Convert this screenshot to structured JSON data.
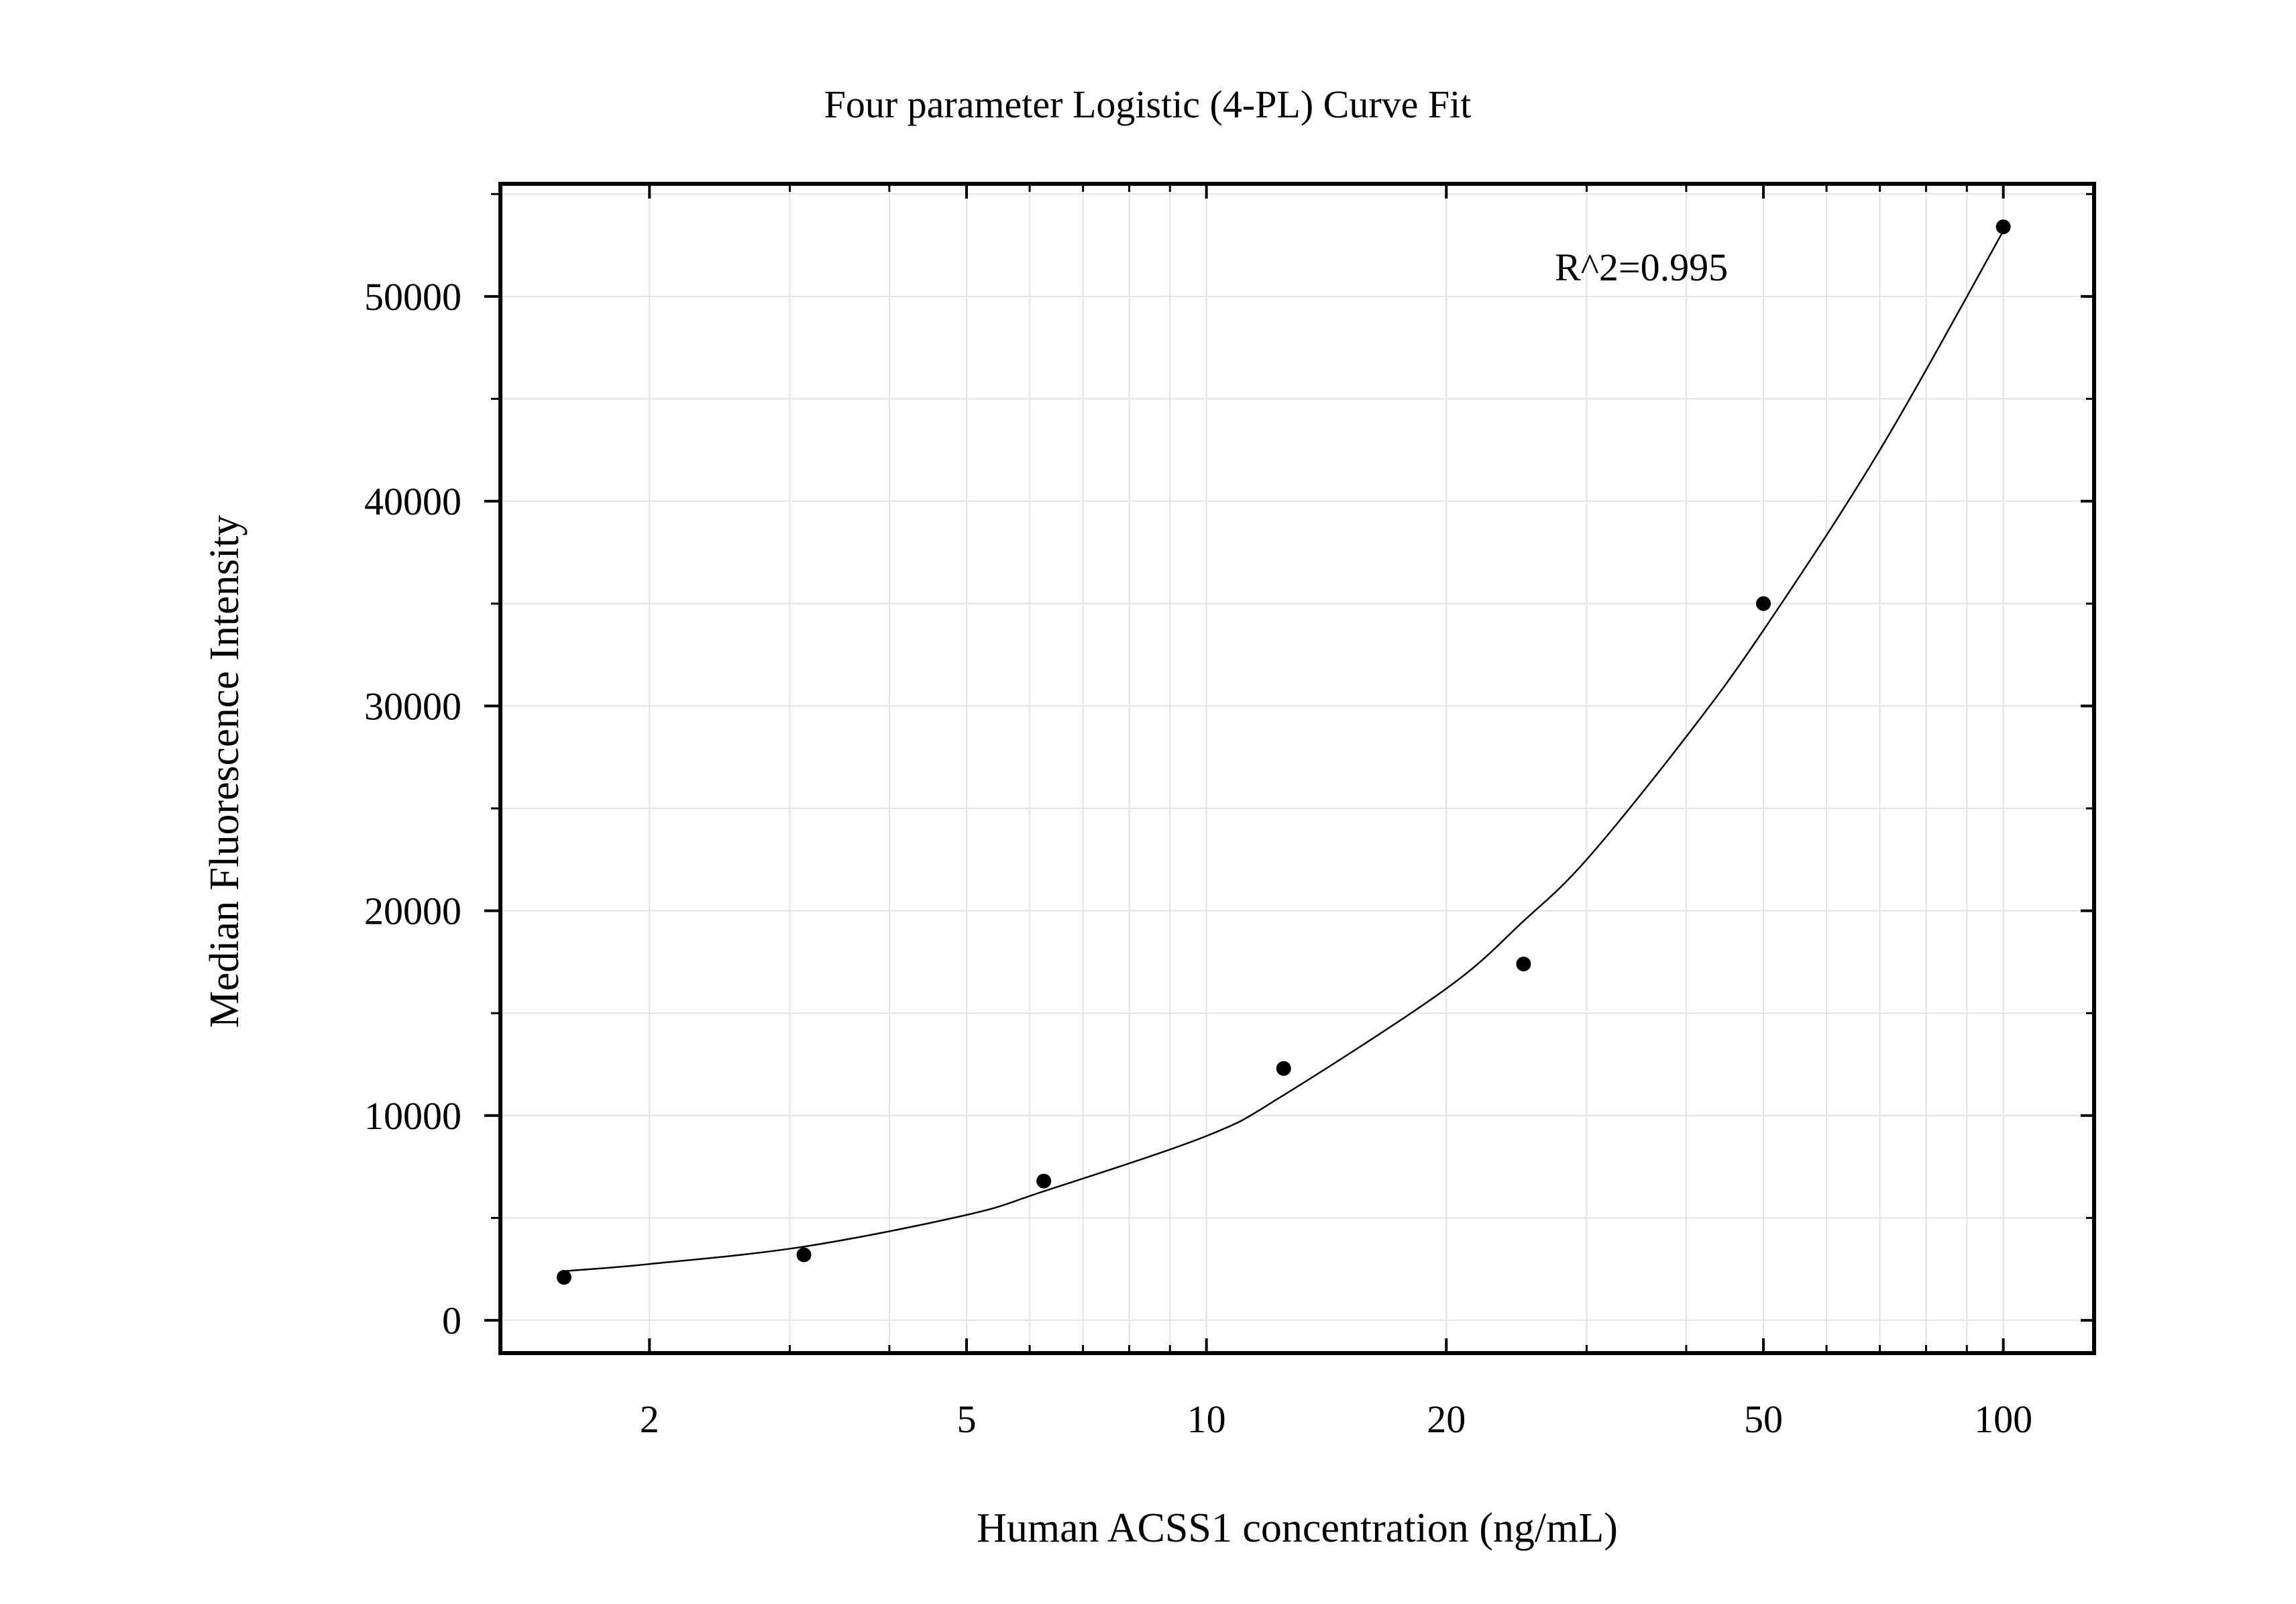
{
  "chart_data": {
    "type": "scatter",
    "title": "Four parameter Logistic (4-PL) Curve Fit",
    "xlabel": "Human ACSS1 concentration (ng/mL)",
    "ylabel": "Median Fluorescence Intensity",
    "x_scale": "log",
    "xlim": [
      1.3,
      130
    ],
    "ylim": [
      -1600,
      55500
    ],
    "x_ticks": [
      2,
      5,
      10,
      20,
      50,
      100
    ],
    "x_tick_labels": [
      "2",
      "5",
      "10",
      "20",
      "50",
      "100"
    ],
    "y_ticks": [
      0,
      10000,
      20000,
      30000,
      40000,
      50000
    ],
    "y_tick_labels": [
      "0",
      "10000",
      "20000",
      "30000",
      "40000",
      "50000"
    ],
    "grid": true,
    "annotation": "R^2=0.995",
    "annotation_position": "top-right",
    "series": [
      {
        "kind": "points",
        "x": [
          1.5625,
          3.125,
          6.25,
          12.5,
          25,
          50,
          100
        ],
        "y": [
          2100,
          3200,
          6800,
          12300,
          17400,
          35000,
          53400
        ]
      },
      {
        "kind": "fit-curve",
        "x": [
          1.5625,
          2,
          3.125,
          5,
          6.25,
          10,
          12.5,
          20,
          25,
          30,
          40,
          50,
          70,
          100
        ],
        "y": [
          2400,
          2750,
          3600,
          5150,
          6300,
          9000,
          11000,
          16200,
          19500,
          22500,
          28500,
          33700,
          42500,
          53200
        ]
      }
    ],
    "colors": {
      "axis": "#000000",
      "grid": "#e3e3e3",
      "points": "#000000",
      "curve": "#000000"
    }
  }
}
